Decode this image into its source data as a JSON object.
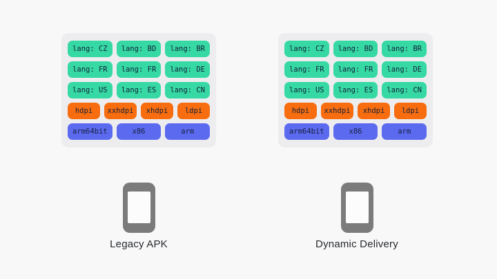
{
  "colors": {
    "page_bg": "#f8f8f8",
    "panel_bg": "#ededef",
    "lang_green": "#36d9a3",
    "density_orange": "#f76d0f",
    "abi_blue": "#5c6af0",
    "chip_text": "#14203a",
    "phone_gray": "#7b7b7b",
    "screen_white": "#fcfcfc",
    "label_text": "#27292d"
  },
  "panels": [
    {
      "label": "Legacy APK",
      "rows": [
        {
          "kind": "lang",
          "chips": [
            "lang: CZ",
            "lang: BD",
            "lang: BR"
          ]
        },
        {
          "kind": "lang",
          "chips": [
            "lang: FR",
            "lang: FR",
            "lang: DE"
          ]
        },
        {
          "kind": "lang",
          "chips": [
            "lang: US",
            "lang: ES",
            "lang: CN"
          ]
        },
        {
          "kind": "density",
          "chips": [
            "hdpi",
            "xxhdpi",
            "xhdpi",
            "ldpi"
          ]
        },
        {
          "kind": "abi",
          "chips": [
            "arm64bit",
            "x86",
            "arm"
          ]
        }
      ]
    },
    {
      "label": "Dynamic Delivery",
      "rows": [
        {
          "kind": "lang",
          "chips": [
            "lang: CZ",
            "lang: BD",
            "lang: BR"
          ]
        },
        {
          "kind": "lang",
          "chips": [
            "lang: FR",
            "lang: FR",
            "lang: DE"
          ]
        },
        {
          "kind": "lang",
          "chips": [
            "lang: US",
            "lang: ES",
            "lang: CN"
          ]
        },
        {
          "kind": "density",
          "chips": [
            "hdpi",
            "xxhdpi",
            "xhdpi",
            "ldpi"
          ]
        },
        {
          "kind": "abi",
          "chips": [
            "arm64bit",
            "x86",
            "arm"
          ]
        }
      ]
    }
  ]
}
